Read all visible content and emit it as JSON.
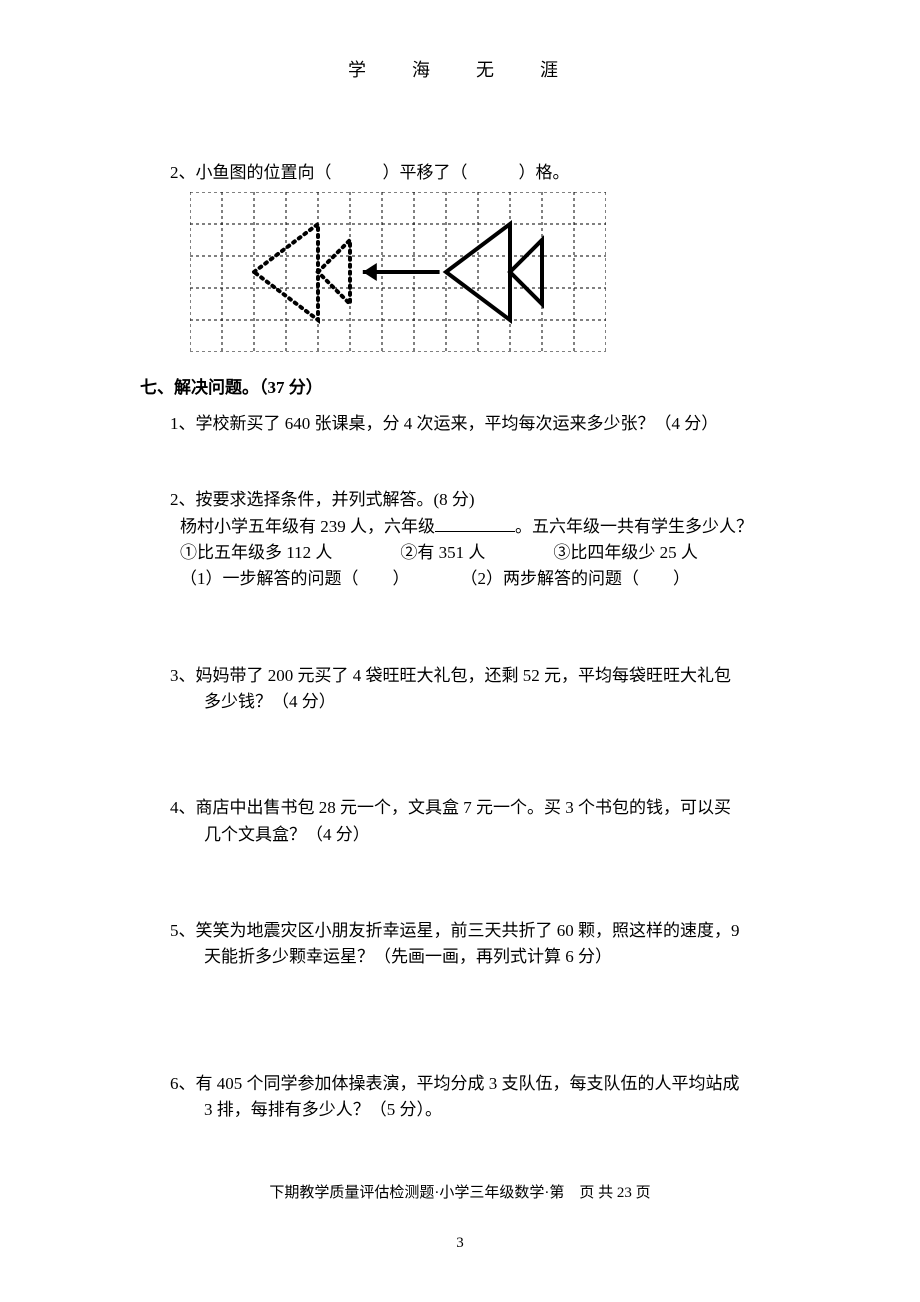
{
  "header": "学　海　无　涯",
  "q2_line": "2、小鱼图的位置向（　　　）平移了（　　　）格。",
  "section7": "七、解决问题。（37 分）",
  "p1": "1、学校新买了 640 张课桌，分 4 次运来，平均每次运来多少张？（4 分）",
  "p2_l1": "2、按要求选择条件，并列式解答。(8 分)",
  "p2_l2a": "杨村小学五年级有 239 人，六年级",
  "p2_l2b": "。五六年级一共有学生多少人？",
  "p2_l3": "①比五年级多 112 人　　　　②有 351 人　　　　③比四年级少 25 人",
  "p2_l4": "（1）一步解答的问题（　　）　　　　（2）两步解答的问题（　　）",
  "p3_a": "3、妈妈带了 200 元买了 4 袋旺旺大礼包，还剩 52 元，平均每袋旺旺大礼包",
  "p3_b": "多少钱？（4 分）",
  "p4_a": "4、商店中出售书包 28 元一个，文具盒 7 元一个。买 3 个书包的钱，可以买",
  "p4_b": "几个文具盒？（4 分）",
  "p5_a": "5、笑笑为地震灾区小朋友折幸运星，前三天共折了 60 颗，照这样的速度，9",
  "p5_b": "天能折多少颗幸运星？（先画一画，再列式计算 6 分）",
  "p6_a": "6、有 405 个同学参加体操表演，平均分成 3 支队伍，每支队伍的人平均站成",
  "p6_b": "3 排，每排有多少人？（5 分）。",
  "footer": "下期教学质量评估检测题·小学三年级数学·第　页 共 23 页",
  "page_num": "3",
  "grid": {
    "cols": 13,
    "rows": 5,
    "cell": 32,
    "stroke_dash": "3,3",
    "grid_color": "#000000",
    "fish_solid_color": "#000000",
    "fish_dotted_color": "#000000",
    "arrow_color": "#000000"
  }
}
